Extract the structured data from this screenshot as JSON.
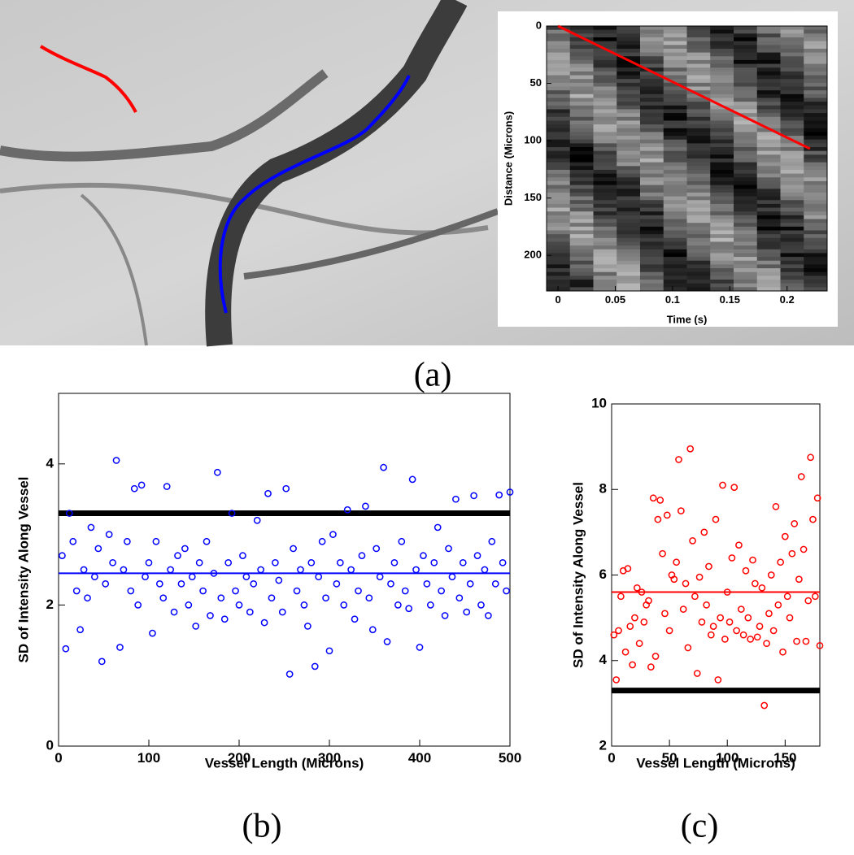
{
  "figure_labels": [
    "(a)",
    "(b)",
    "(c)"
  ],
  "chart_data": [
    {
      "type": "line",
      "x_label": "Time (s)",
      "y_label": "Distance (Microns)",
      "x": [
        0,
        0.22
      ],
      "values": [
        0,
        107
      ],
      "color": "#ff0000",
      "xlim": [
        -0.01,
        0.235
      ],
      "xticks": [
        0,
        0.05,
        0.1,
        0.15,
        0.2
      ],
      "ylim": [
        0,
        231
      ],
      "y_inverted": true,
      "yticks": [
        0,
        50,
        100,
        150,
        200
      ]
    },
    {
      "type": "scatter",
      "x_label": "Vessel Length (Microns)",
      "y_label": "SD of Intensity Along Vessel",
      "color": "#0000ff",
      "xlim": [
        0,
        500
      ],
      "xticks": [
        0,
        100,
        200,
        300,
        400,
        500
      ],
      "ylim": [
        0,
        5
      ],
      "yticks": [
        0,
        2,
        4
      ],
      "reference_lines": [
        {
          "value": 3.3,
          "color": "#000000"
        },
        {
          "value": 2.45,
          "color": "#0000ff"
        }
      ],
      "x": [
        4,
        8,
        12,
        16,
        20,
        24,
        28,
        32,
        36,
        40,
        44,
        48,
        52,
        56,
        60,
        64,
        68,
        72,
        76,
        80,
        84,
        88,
        92,
        96,
        100,
        104,
        108,
        112,
        116,
        120,
        124,
        128,
        132,
        136,
        140,
        144,
        148,
        152,
        156,
        160,
        164,
        168,
        172,
        176,
        180,
        184,
        188,
        192,
        196,
        200,
        204,
        208,
        212,
        216,
        220,
        224,
        228,
        232,
        236,
        240,
        244,
        248,
        252,
        256,
        260,
        264,
        268,
        272,
        276,
        280,
        284,
        288,
        292,
        296,
        300,
        304,
        308,
        312,
        316,
        320,
        324,
        328,
        332,
        336,
        340,
        344,
        348,
        352,
        356,
        360,
        364,
        368,
        372,
        376,
        380,
        384,
        388,
        392,
        396,
        400,
        404,
        408,
        412,
        416,
        420,
        424,
        428,
        432,
        436,
        440,
        444,
        448,
        452,
        456,
        460,
        464,
        468,
        472,
        476,
        480,
        484,
        488,
        492,
        496,
        500
      ],
      "values": [
        2.7,
        1.38,
        3.3,
        2.9,
        2.2,
        1.65,
        2.5,
        2.1,
        3.1,
        2.4,
        2.8,
        1.2,
        2.3,
        3.0,
        2.6,
        4.05,
        1.4,
        2.5,
        2.9,
        2.2,
        3.65,
        2.0,
        3.7,
        2.4,
        2.6,
        1.6,
        2.9,
        2.3,
        2.1,
        3.68,
        2.5,
        1.9,
        2.7,
        2.3,
        2.8,
        2.0,
        2.4,
        1.7,
        2.6,
        2.2,
        2.9,
        1.85,
        2.45,
        3.88,
        2.1,
        1.8,
        2.6,
        3.3,
        2.2,
        2.0,
        2.7,
        2.4,
        1.9,
        2.3,
        3.2,
        2.5,
        1.75,
        3.58,
        2.1,
        2.6,
        2.35,
        1.9,
        3.65,
        1.02,
        2.8,
        2.2,
        2.5,
        2.0,
        1.7,
        2.6,
        1.13,
        2.4,
        2.9,
        2.1,
        1.35,
        3.0,
        2.3,
        2.6,
        2.0,
        3.35,
        2.5,
        1.8,
        2.2,
        2.7,
        3.4,
        2.1,
        1.65,
        2.8,
        2.4,
        3.95,
        1.48,
        2.3,
        2.6,
        2.0,
        2.9,
        2.2,
        1.95,
        3.78,
        2.5,
        1.4,
        2.7,
        2.3,
        2.0,
        2.6,
        3.1,
        2.2,
        1.85,
        2.8,
        2.4,
        3.5,
        2.1,
        2.6,
        1.9,
        2.3,
        3.55,
        2.7,
        2.0,
        2.5,
        1.85,
        2.9,
        2.3,
        3.56,
        2.6,
        2.2,
        3.6
      ]
    },
    {
      "type": "scatter",
      "x_label": "Vessel Length (Microns)",
      "y_label": "SD of Intensity Along Vessel",
      "color": "#ff0000",
      "xlim": [
        0,
        180
      ],
      "xticks": [
        0,
        50,
        100,
        150
      ],
      "ylim": [
        2,
        10
      ],
      "yticks": [
        2,
        4,
        6,
        8,
        10
      ],
      "reference_lines": [
        {
          "value": 3.3,
          "color": "#000000"
        },
        {
          "value": 5.6,
          "color": "#ff0000"
        }
      ],
      "x": [
        2,
        4,
        6,
        8,
        10,
        12,
        14,
        16,
        18,
        20,
        22,
        24,
        26,
        28,
        30,
        32,
        34,
        36,
        38,
        40,
        42,
        44,
        46,
        48,
        50,
        52,
        54,
        56,
        58,
        60,
        62,
        64,
        66,
        68,
        70,
        72,
        74,
        76,
        78,
        80,
        82,
        84,
        86,
        88,
        90,
        92,
        94,
        96,
        98,
        100,
        102,
        104,
        106,
        108,
        110,
        112,
        114,
        116,
        118,
        120,
        122,
        124,
        126,
        128,
        130,
        132,
        134,
        136,
        138,
        140,
        142,
        144,
        146,
        148,
        150,
        152,
        154,
        156,
        158,
        160,
        162,
        164,
        166,
        168,
        170,
        172,
        174,
        176,
        178,
        180
      ],
      "values": [
        4.6,
        3.55,
        4.7,
        5.5,
        6.1,
        4.2,
        6.15,
        4.8,
        3.9,
        5.0,
        5.7,
        4.4,
        5.6,
        4.9,
        5.3,
        5.4,
        3.85,
        7.8,
        4.1,
        7.3,
        7.75,
        6.5,
        5.1,
        7.4,
        4.7,
        6.0,
        5.9,
        6.3,
        8.7,
        7.5,
        5.2,
        5.8,
        4.3,
        8.95,
        6.8,
        5.5,
        3.7,
        5.95,
        4.9,
        7.0,
        5.3,
        6.2,
        4.6,
        4.8,
        7.3,
        3.55,
        5.0,
        8.1,
        4.5,
        5.6,
        4.9,
        6.4,
        8.05,
        4.7,
        6.7,
        5.2,
        4.6,
        6.1,
        5.0,
        4.5,
        6.35,
        5.8,
        4.55,
        4.8,
        5.7,
        2.95,
        4.4,
        5.1,
        6.0,
        4.7,
        7.6,
        5.3,
        6.3,
        4.2,
        6.9,
        5.5,
        5.0,
        6.5,
        7.2,
        4.45,
        5.9,
        8.3,
        6.6,
        4.45,
        5.4,
        8.75,
        7.3,
        5.5,
        7.8,
        4.35
      ]
    }
  ]
}
